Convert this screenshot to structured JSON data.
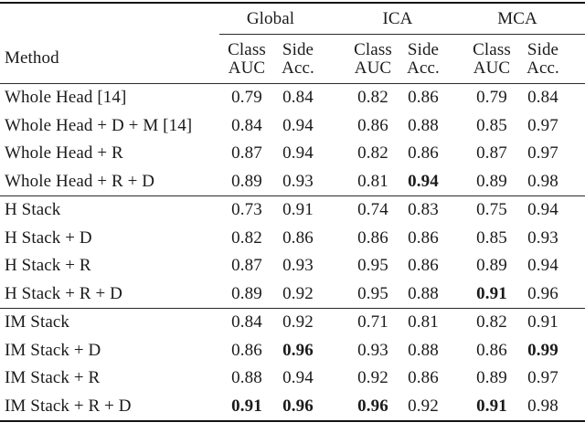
{
  "colors": {
    "background": "#ffffff",
    "text": "#1b1b1b",
    "rule_heavy": "#141414",
    "rule_light": "#2b2b2b"
  },
  "table": {
    "method_header": "Method",
    "group_headers": [
      "Global",
      "ICA",
      "MCA"
    ],
    "sub_header_class": {
      "line1": "Class",
      "line2": "AUC"
    },
    "sub_header_side": {
      "line1": "Side",
      "line2": "Acc."
    },
    "blocks": [
      {
        "rows": [
          {
            "method": "Whole Head [14]",
            "values": [
              "0.79",
              "0.84",
              "0.82",
              "0.86",
              "0.79",
              "0.84"
            ],
            "bold": [
              false,
              false,
              false,
              false,
              false,
              false
            ]
          },
          {
            "method": "Whole Head + D + M [14]",
            "values": [
              "0.84",
              "0.94",
              "0.86",
              "0.88",
              "0.85",
              "0.97"
            ],
            "bold": [
              false,
              false,
              false,
              false,
              false,
              false
            ]
          },
          {
            "method": "Whole Head + R",
            "values": [
              "0.87",
              "0.94",
              "0.82",
              "0.86",
              "0.87",
              "0.97"
            ],
            "bold": [
              false,
              false,
              false,
              false,
              false,
              false
            ]
          },
          {
            "method": "Whole Head + R + D",
            "values": [
              "0.89",
              "0.93",
              "0.81",
              "0.94",
              "0.89",
              "0.98"
            ],
            "bold": [
              false,
              false,
              false,
              true,
              false,
              false
            ]
          }
        ]
      },
      {
        "rows": [
          {
            "method": "H Stack",
            "values": [
              "0.73",
              "0.91",
              "0.74",
              "0.83",
              "0.75",
              "0.94"
            ],
            "bold": [
              false,
              false,
              false,
              false,
              false,
              false
            ]
          },
          {
            "method": "H Stack + D",
            "values": [
              "0.82",
              "0.86",
              "0.86",
              "0.86",
              "0.85",
              "0.93"
            ],
            "bold": [
              false,
              false,
              false,
              false,
              false,
              false
            ]
          },
          {
            "method": "H Stack + R",
            "values": [
              "0.87",
              "0.93",
              "0.95",
              "0.86",
              "0.89",
              "0.94"
            ],
            "bold": [
              false,
              false,
              false,
              false,
              false,
              false
            ]
          },
          {
            "method": "H Stack + R + D",
            "values": [
              "0.89",
              "0.92",
              "0.95",
              "0.88",
              "0.91",
              "0.96"
            ],
            "bold": [
              false,
              false,
              false,
              false,
              true,
              false
            ]
          }
        ]
      },
      {
        "rows": [
          {
            "method": "IM Stack",
            "values": [
              "0.84",
              "0.92",
              "0.71",
              "0.81",
              "0.82",
              "0.91"
            ],
            "bold": [
              false,
              false,
              false,
              false,
              false,
              false
            ]
          },
          {
            "method": "IM Stack + D",
            "values": [
              "0.86",
              "0.96",
              "0.93",
              "0.88",
              "0.86",
              "0.99"
            ],
            "bold": [
              false,
              true,
              false,
              false,
              false,
              true
            ]
          },
          {
            "method": "IM Stack + R",
            "values": [
              "0.88",
              "0.94",
              "0.92",
              "0.86",
              "0.89",
              "0.97"
            ],
            "bold": [
              false,
              false,
              false,
              false,
              false,
              false
            ]
          },
          {
            "method": "IM Stack + R + D",
            "values": [
              "0.91",
              "0.96",
              "0.96",
              "0.92",
              "0.91",
              "0.98"
            ],
            "bold": [
              true,
              true,
              true,
              false,
              true,
              false
            ]
          }
        ]
      }
    ]
  }
}
